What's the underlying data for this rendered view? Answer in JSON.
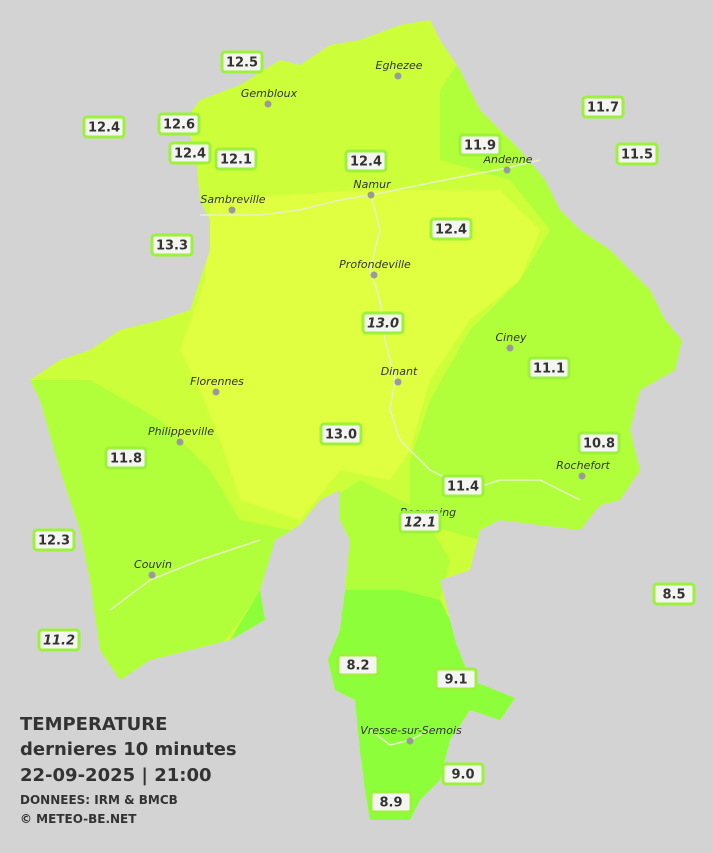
{
  "legend": {
    "title": "TEMPERATURE",
    "subtitle": "dernieres 10 minutes",
    "datetime": "22-09-2025  |  21:00",
    "source": "DONNEES: IRM & BMCB",
    "copyright": "© METEO-BE.NET"
  },
  "towns": [
    "Eghezee",
    "Gembloux",
    "Andenne",
    "Namur",
    "Sambreville",
    "Profondeville",
    "Ciney",
    "Dinant",
    "Florennes",
    "Philippeville",
    "Rochefort",
    "Beauraing",
    "Couvin",
    "Vresse-sur-Semois"
  ],
  "stations": [
    "12.5",
    "12.4",
    "12.6",
    "12.4",
    "12.1",
    "12.4",
    "11.9",
    "11.7",
    "11.5",
    "13.3",
    "12.4",
    "13.0",
    "11.1",
    "13.0",
    "11.8",
    "10.8",
    "11.4",
    "12.1",
    "12.3",
    "8.5",
    "11.2",
    "8.2",
    "9.1",
    "9.0",
    "8.9"
  ]
}
